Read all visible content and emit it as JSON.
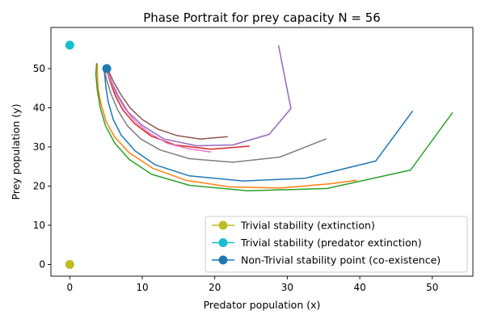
{
  "chart_data": {
    "type": "line",
    "title": "Phase Portrait for prey capacity N = 56",
    "xlabel": "Predator population (x)",
    "ylabel": "Prey population (y)",
    "xlim": [
      -2.6,
      55.6
    ],
    "ylim": [
      -3.0,
      60.5
    ],
    "xticks": [
      0,
      10,
      20,
      30,
      40,
      50
    ],
    "yticks": [
      0,
      10,
      20,
      30,
      40,
      50
    ],
    "grid": false,
    "legend_position": "lower right",
    "trajectories": [
      {
        "color": "#1f77b4",
        "points": [
          [
            47.3,
            39.2
          ],
          [
            42.2,
            26.4
          ],
          [
            32.5,
            22.0
          ],
          [
            23.9,
            21.3
          ],
          [
            16.5,
            22.6
          ],
          [
            11.8,
            25.4
          ],
          [
            9.0,
            29.0
          ],
          [
            7.1,
            33.0
          ],
          [
            6.0,
            37.0
          ],
          [
            5.3,
            41.5
          ],
          [
            5.0,
            45.0
          ],
          [
            4.8,
            48.5
          ],
          [
            4.7,
            50.8
          ]
        ]
      },
      {
        "color": "#ff7f0e",
        "points": [
          [
            39.6,
            21.5
          ],
          [
            36.0,
            20.6
          ],
          [
            29.0,
            19.5
          ],
          [
            22.0,
            19.8
          ],
          [
            16.0,
            21.5
          ],
          [
            11.5,
            24.5
          ],
          [
            8.2,
            28.5
          ],
          [
            6.2,
            32.5
          ],
          [
            5.0,
            36.5
          ],
          [
            4.3,
            41.0
          ],
          [
            3.9,
            45.0
          ],
          [
            3.8,
            48.5
          ],
          [
            3.8,
            51.2
          ]
        ]
      },
      {
        "color": "#2ca02c",
        "points": [
          [
            52.8,
            38.8
          ],
          [
            47.0,
            24.1
          ],
          [
            35.5,
            19.4
          ],
          [
            24.5,
            18.8
          ],
          [
            16.5,
            20.2
          ],
          [
            11.3,
            23.0
          ],
          [
            8.2,
            26.8
          ],
          [
            6.2,
            31.0
          ],
          [
            4.9,
            35.5
          ],
          [
            4.2,
            40.0
          ],
          [
            3.8,
            44.5
          ],
          [
            3.6,
            48.5
          ],
          [
            3.7,
            51.4
          ]
        ]
      },
      {
        "color": "#d62728",
        "points": [
          [
            24.8,
            30.2
          ],
          [
            19.5,
            29.4
          ],
          [
            14.5,
            30.5
          ],
          [
            11.2,
            32.8
          ],
          [
            8.9,
            36.0
          ],
          [
            7.3,
            39.5
          ],
          [
            6.3,
            43.0
          ],
          [
            5.6,
            46.5
          ],
          [
            5.2,
            49.0
          ],
          [
            5.0,
            50.8
          ]
        ]
      },
      {
        "color": "#9467bd",
        "points": [
          [
            28.8,
            55.9
          ],
          [
            30.5,
            39.8
          ],
          [
            27.5,
            33.2
          ],
          [
            22.5,
            30.5
          ],
          [
            17.5,
            30.3
          ],
          [
            13.0,
            32.0
          ],
          [
            10.0,
            35.5
          ],
          [
            8.0,
            39.0
          ],
          [
            6.7,
            43.0
          ],
          [
            5.8,
            46.5
          ],
          [
            5.3,
            49.0
          ],
          [
            5.0,
            50.5
          ]
        ]
      },
      {
        "color": "#8c564b",
        "points": [
          [
            21.8,
            32.6
          ],
          [
            18.0,
            32.0
          ],
          [
            14.8,
            32.9
          ],
          [
            12.2,
            34.5
          ],
          [
            10.0,
            37.0
          ],
          [
            8.3,
            40.0
          ],
          [
            7.0,
            43.5
          ],
          [
            6.0,
            46.8
          ],
          [
            5.4,
            49.2
          ],
          [
            5.1,
            50.6
          ]
        ]
      },
      {
        "color": "#e377c2",
        "points": [
          [
            19.5,
            28.7
          ],
          [
            16.5,
            29.5
          ],
          [
            13.5,
            30.9
          ],
          [
            11.0,
            33.5
          ],
          [
            9.0,
            36.5
          ],
          [
            7.5,
            40.0
          ],
          [
            6.4,
            43.5
          ],
          [
            5.6,
            47.0
          ],
          [
            5.2,
            49.5
          ],
          [
            5.0,
            50.8
          ]
        ]
      },
      {
        "color": "#7f7f7f",
        "points": [
          [
            35.4,
            32.1
          ],
          [
            29.0,
            27.4
          ],
          [
            22.5,
            26.1
          ],
          [
            16.5,
            27.0
          ],
          [
            12.5,
            29.2
          ],
          [
            9.8,
            32.0
          ],
          [
            7.9,
            35.5
          ],
          [
            6.6,
            39.5
          ],
          [
            5.7,
            43.5
          ],
          [
            5.1,
            47.0
          ],
          [
            4.8,
            49.5
          ],
          [
            4.7,
            50.8
          ]
        ]
      }
    ],
    "legend": [
      {
        "label": "Trivial stability (extinction)",
        "color": "#bcbd22"
      },
      {
        "label": "Trivial stability (predator extinction)",
        "color": "#17becf"
      },
      {
        "label": "Non-Trivial stability point (co-existence)",
        "color": "#1f77b4"
      }
    ],
    "points": [
      {
        "x": 0,
        "y": 0,
        "color": "#bcbd22"
      },
      {
        "x": 0,
        "y": 56,
        "color": "#17becf"
      },
      {
        "x": 5.1,
        "y": 50,
        "color": "#1f77b4"
      }
    ]
  }
}
